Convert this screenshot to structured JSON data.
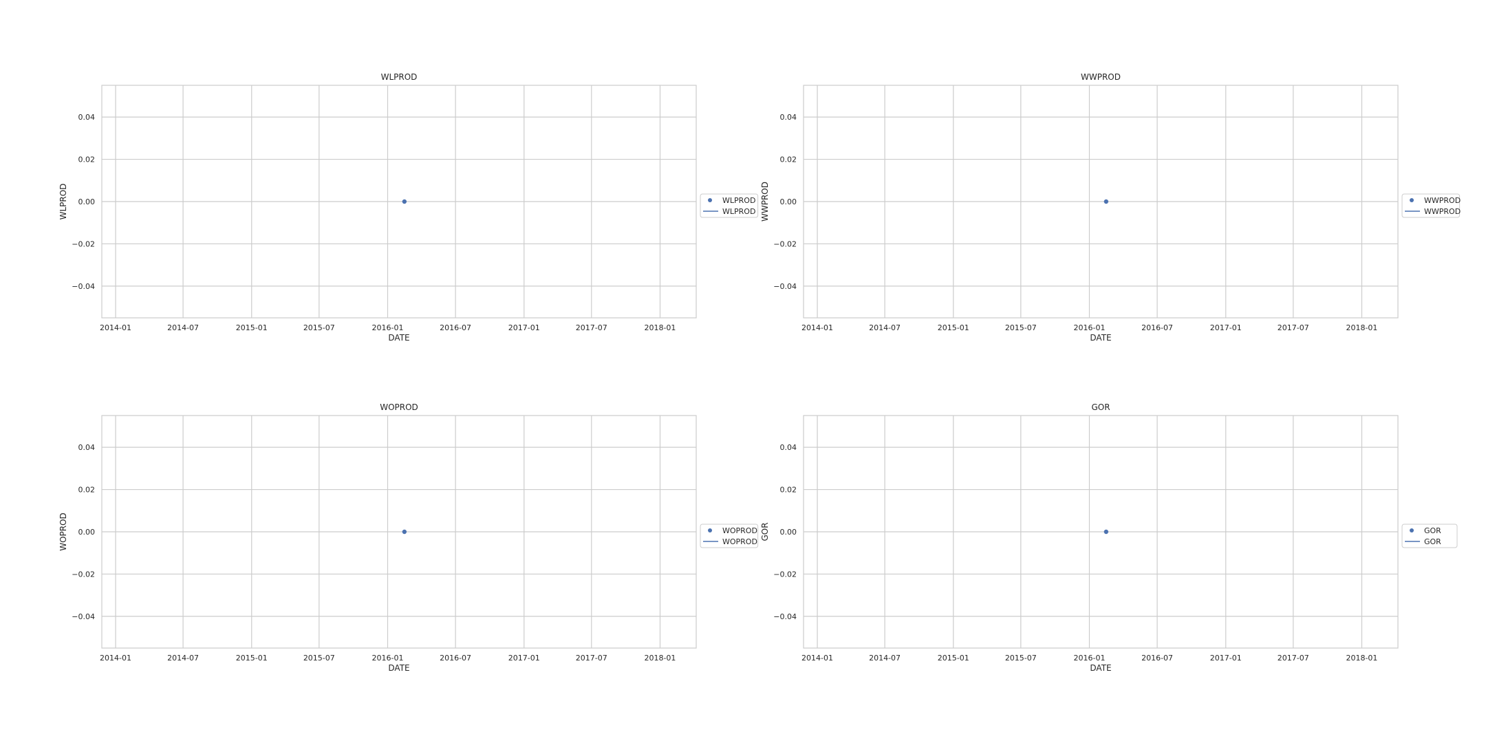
{
  "chart_data": [
    {
      "type": "scatter",
      "title": "WLPROD",
      "xlabel": "DATE",
      "ylabel": "WLPROD",
      "x_ticks": [
        "2014-01",
        "2014-07",
        "2015-01",
        "2015-07",
        "2016-01",
        "2016-07",
        "2017-01",
        "2017-07",
        "2018-01"
      ],
      "y_ticks": [
        "−0.04",
        "−0.02",
        "0.00",
        "0.02",
        "0.04"
      ],
      "y_tick_values": [
        -0.04,
        -0.02,
        0.0,
        0.02,
        0.04
      ],
      "xlim": [
        "2013-11-25",
        "2018-04-08"
      ],
      "ylim": [
        -0.055,
        0.055
      ],
      "grid": true,
      "legend": [
        "WLPROD",
        "WLPROD"
      ],
      "legend_position": "center-right-outside",
      "series": [
        {
          "x": [
            "2016-02-15"
          ],
          "y": [
            0.0
          ]
        }
      ]
    },
    {
      "type": "scatter",
      "title": "WWPROD",
      "xlabel": "DATE",
      "ylabel": "WWPROD",
      "x_ticks": [
        "2014-01",
        "2014-07",
        "2015-01",
        "2015-07",
        "2016-01",
        "2016-07",
        "2017-01",
        "2017-07",
        "2018-01"
      ],
      "y_ticks": [
        "−0.04",
        "−0.02",
        "0.00",
        "0.02",
        "0.04"
      ],
      "y_tick_values": [
        -0.04,
        -0.02,
        0.0,
        0.02,
        0.04
      ],
      "xlim": [
        "2013-11-25",
        "2018-04-08"
      ],
      "ylim": [
        -0.055,
        0.055
      ],
      "grid": true,
      "legend": [
        "WWPROD",
        "WWPROD"
      ],
      "legend_position": "center-right-outside",
      "series": [
        {
          "x": [
            "2016-02-15"
          ],
          "y": [
            0.0
          ]
        }
      ]
    },
    {
      "type": "scatter",
      "title": "WOPROD",
      "xlabel": "DATE",
      "ylabel": "WOPROD",
      "x_ticks": [
        "2014-01",
        "2014-07",
        "2015-01",
        "2015-07",
        "2016-01",
        "2016-07",
        "2017-01",
        "2017-07",
        "2018-01"
      ],
      "y_ticks": [
        "−0.04",
        "−0.02",
        "0.00",
        "0.02",
        "0.04"
      ],
      "y_tick_values": [
        -0.04,
        -0.02,
        0.0,
        0.02,
        0.04
      ],
      "xlim": [
        "2013-11-25",
        "2018-04-08"
      ],
      "ylim": [
        -0.055,
        0.055
      ],
      "grid": true,
      "legend": [
        "WOPROD",
        "WOPROD"
      ],
      "legend_position": "center-right-outside",
      "series": [
        {
          "x": [
            "2016-02-15"
          ],
          "y": [
            0.0
          ]
        }
      ]
    },
    {
      "type": "scatter",
      "title": "GOR",
      "xlabel": "DATE",
      "ylabel": "GOR",
      "x_ticks": [
        "2014-01",
        "2014-07",
        "2015-01",
        "2015-07",
        "2016-01",
        "2016-07",
        "2017-01",
        "2017-07",
        "2018-01"
      ],
      "y_ticks": [
        "−0.04",
        "−0.02",
        "0.00",
        "0.02",
        "0.04"
      ],
      "y_tick_values": [
        -0.04,
        -0.02,
        0.0,
        0.02,
        0.04
      ],
      "xlim": [
        "2013-11-25",
        "2018-04-08"
      ],
      "ylim": [
        -0.055,
        0.055
      ],
      "grid": true,
      "legend": [
        "GOR",
        "GOR"
      ],
      "legend_position": "center-right-outside",
      "series": [
        {
          "x": [
            "2016-02-15"
          ],
          "y": [
            0.0
          ]
        }
      ]
    }
  ],
  "colors": {
    "series": "#4c72b0",
    "grid": "#cccccc",
    "axes_edge": "#cccccc",
    "text": "#262626"
  }
}
